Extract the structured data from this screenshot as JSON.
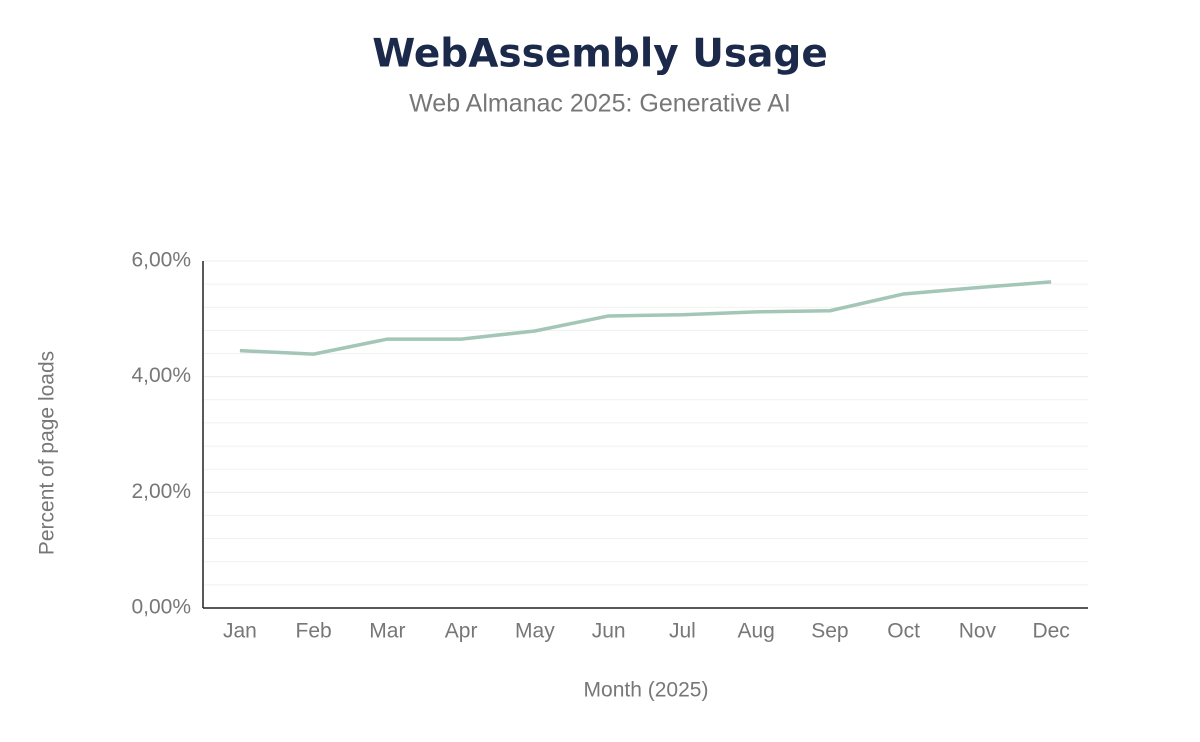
{
  "chart_data": {
    "type": "line",
    "title": "WebAssembly Usage",
    "subtitle": "Web Almanac 2025: Generative AI",
    "x_label": "Month (2025)",
    "y_label": "Percent of page loads",
    "categories": [
      "Jan",
      "Feb",
      "Mar",
      "Apr",
      "May",
      "Jun",
      "Jul",
      "Aug",
      "Sep",
      "Oct",
      "Nov",
      "Dec"
    ],
    "series": [
      {
        "name": "WebAssembly Usage",
        "color": "#a3c6b7",
        "values": [
          4.45,
          4.39,
          4.65,
          4.65,
          4.79,
          5.05,
          5.07,
          5.12,
          5.14,
          5.43,
          5.54,
          5.64
        ]
      }
    ],
    "ylim": [
      0,
      6
    ],
    "yticks": [
      {
        "value": 0,
        "label": "0,00%"
      },
      {
        "value": 2,
        "label": "2,00%"
      },
      {
        "value": 4,
        "label": "4,00%"
      },
      {
        "value": 6,
        "label": "6,00%"
      }
    ],
    "grid": true
  }
}
